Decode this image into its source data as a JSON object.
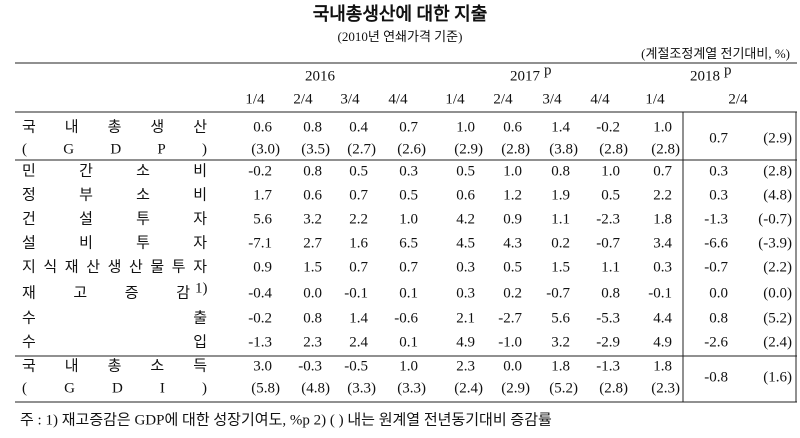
{
  "title": "국내총생산에 대한 지출",
  "subtitle": "(2010년 연쇄가격 기준)",
  "unit": "(계절조정계열 전기대비, %)",
  "header": {
    "years": [
      {
        "label": "2016"
      },
      {
        "label": "2017",
        "sup": "p"
      },
      {
        "label": "2018",
        "sup": "p"
      }
    ],
    "quarters": [
      "1/4",
      "2/4",
      "3/4",
      "4/4",
      "1/4",
      "2/4",
      "3/4",
      "4/4",
      "1/4",
      "2/4"
    ]
  },
  "rows": [
    {
      "label": "국내총생산",
      "sublabel": "(GDP)",
      "values": [
        "0.6",
        "0.8",
        "0.4",
        "0.7",
        "1.0",
        "0.6",
        "1.4",
        "-0.2",
        "1.0",
        "0.7"
      ],
      "yoy": [
        "(3.0)",
        "(3.5)",
        "(2.7)",
        "(2.6)",
        "(2.9)",
        "(2.8)",
        "(3.8)",
        "(2.8)",
        "(2.8)",
        "(2.9)"
      ]
    },
    {
      "label": "민간소비",
      "values": [
        "-0.2",
        "0.8",
        "0.5",
        "0.3",
        "0.5",
        "1.0",
        "0.8",
        "1.0",
        "0.7",
        "0.3"
      ],
      "yoy": "(2.8)"
    },
    {
      "label": "정부소비",
      "values": [
        "1.7",
        "0.6",
        "0.7",
        "0.5",
        "0.6",
        "1.2",
        "1.9",
        "0.5",
        "2.2",
        "0.3"
      ],
      "yoy": "(4.8)"
    },
    {
      "label": "건설투자",
      "values": [
        "5.6",
        "3.2",
        "2.2",
        "1.0",
        "4.2",
        "0.9",
        "1.1",
        "-2.3",
        "1.8",
        "-1.3"
      ],
      "yoy": "(-0.7)"
    },
    {
      "label": "설비투자",
      "values": [
        "-7.1",
        "2.7",
        "1.6",
        "6.5",
        "4.5",
        "4.3",
        "0.2",
        "-0.7",
        "3.4",
        "-6.6"
      ],
      "yoy": "(-3.9)"
    },
    {
      "label": "지식재산생산물투자",
      "values": [
        "0.9",
        "1.5",
        "0.7",
        "0.7",
        "0.3",
        "0.5",
        "1.5",
        "1.1",
        "0.3",
        "-0.7"
      ],
      "yoy": "(2.2)"
    },
    {
      "label": "재고증감",
      "note": "1)",
      "values": [
        "-0.4",
        "0.0",
        "-0.1",
        "0.1",
        "0.3",
        "0.2",
        "-0.7",
        "0.8",
        "-0.1",
        "0.0"
      ],
      "yoy": "(0.0)"
    },
    {
      "label": "수출",
      "values": [
        "-0.2",
        "0.8",
        "1.4",
        "-0.6",
        "2.1",
        "-2.7",
        "5.6",
        "-5.3",
        "4.4",
        "0.8"
      ],
      "yoy": "(5.2)"
    },
    {
      "label": "수입",
      "values": [
        "-1.3",
        "2.3",
        "2.4",
        "0.1",
        "4.9",
        "-1.0",
        "3.2",
        "-2.9",
        "4.9",
        "-2.6"
      ],
      "yoy": "(2.4)"
    },
    {
      "label": "국내총소득",
      "sublabel": "(GDI)",
      "values": [
        "3.0",
        "-0.3",
        "-0.5",
        "1.0",
        "2.3",
        "0.0",
        "1.8",
        "-1.3",
        "1.8",
        "-0.8"
      ],
      "yoy": [
        "(5.8)",
        "(4.8)",
        "(3.3)",
        "(3.3)",
        "(2.4)",
        "(2.9)",
        "(5.2)",
        "(2.8)",
        "(2.3)",
        "(1.6)"
      ]
    }
  ],
  "footnote": "주 : 1) 재고증감은 GDP에 대한 성장기여도, %p    2) (  ) 내는 원계열 전년동기대비 증감률"
}
